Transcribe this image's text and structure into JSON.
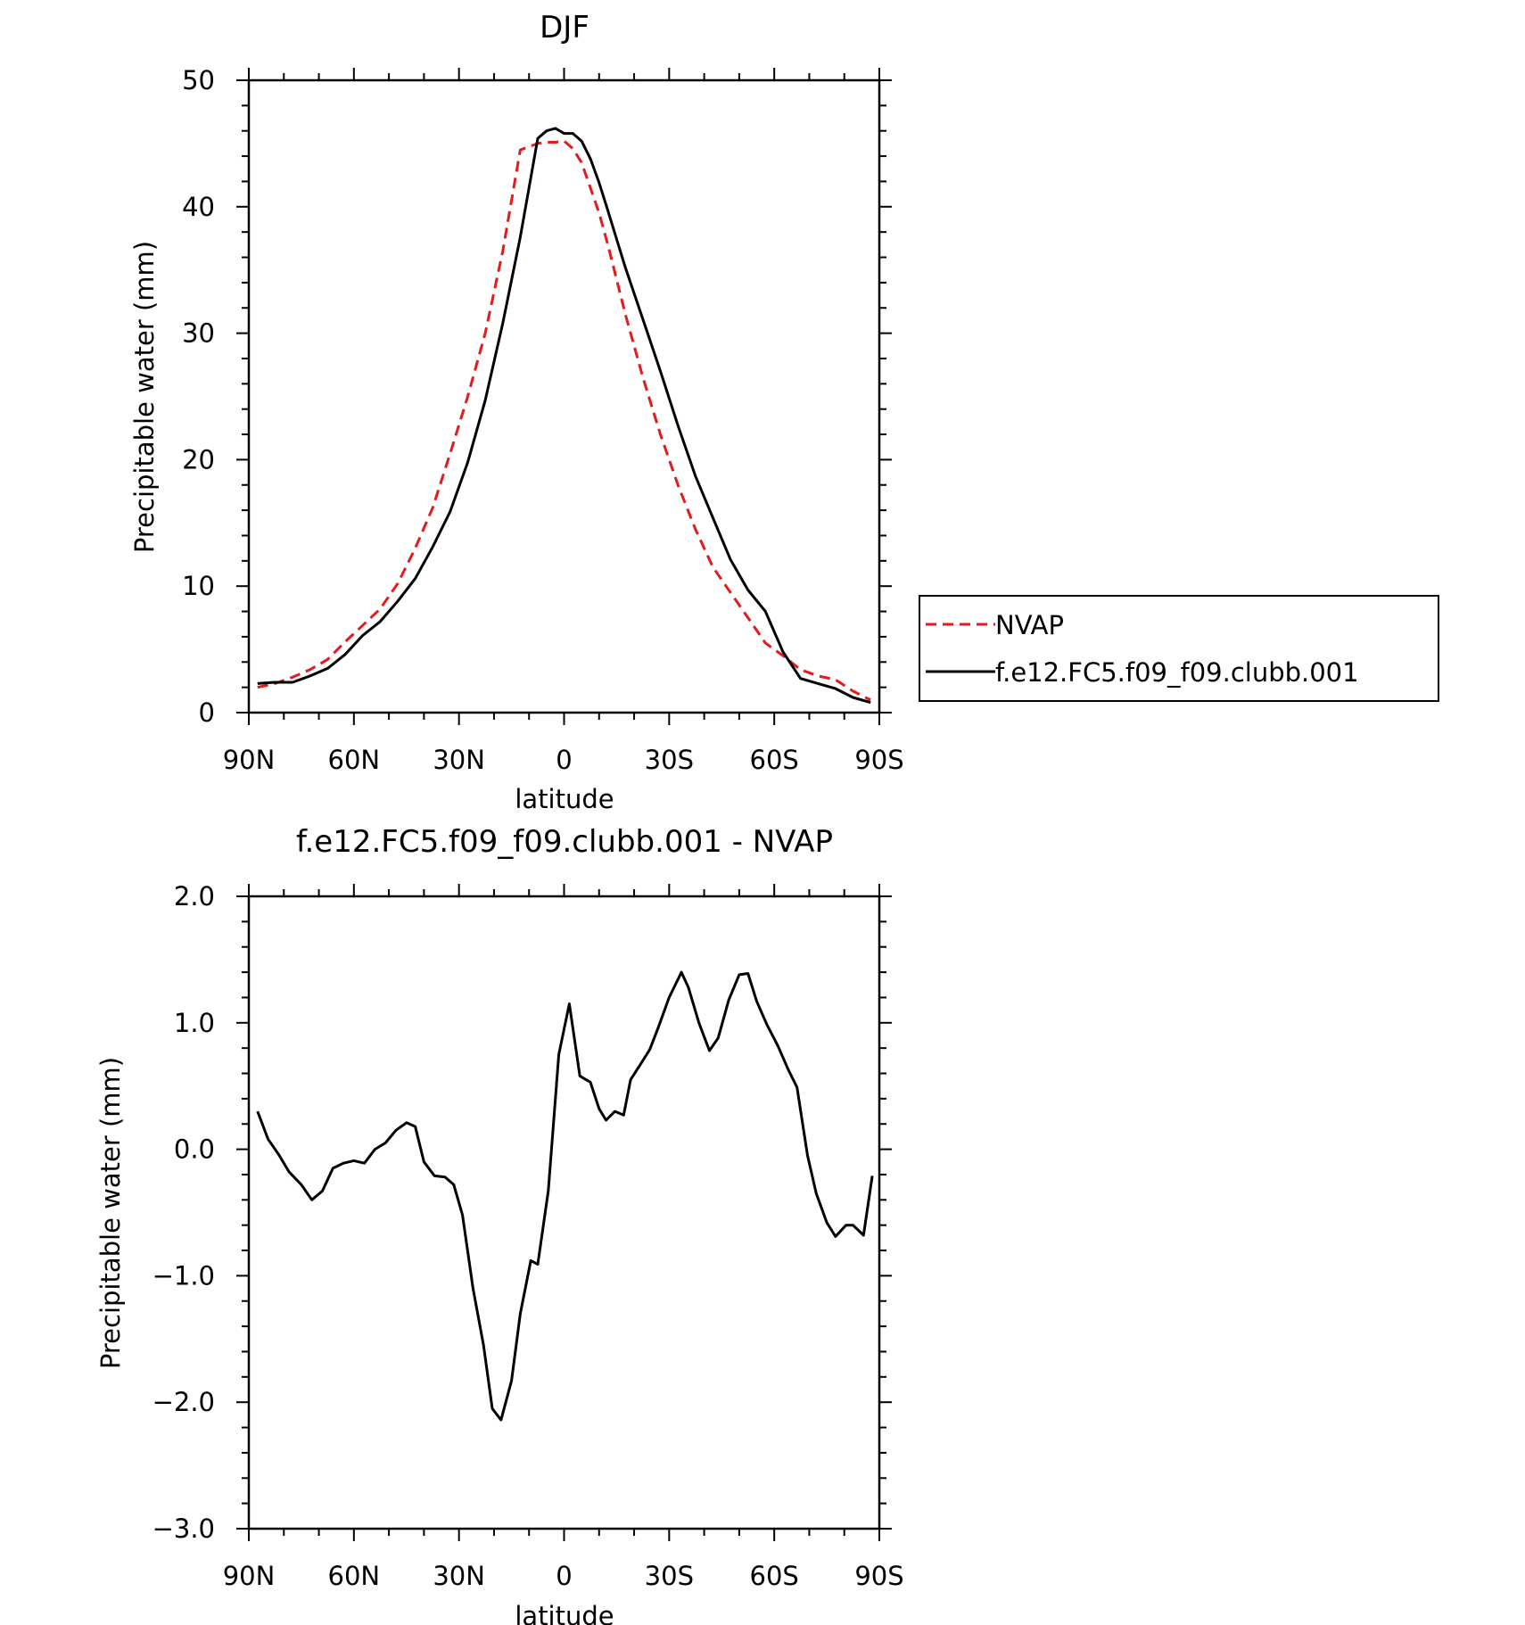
{
  "colors": {
    "ink": "#000000",
    "nvap": "#e41a1c",
    "background": "#ffffff"
  },
  "chart_data": [
    {
      "type": "line",
      "title": "DJF",
      "xlabel": "latitude",
      "ylabel": "Precipitable water (mm)",
      "xlim": [
        90,
        -90
      ],
      "ylim": [
        0,
        50
      ],
      "xticks": [
        90,
        60,
        30,
        0,
        -30,
        -60,
        -90
      ],
      "xtick_labels": [
        "90N",
        "60N",
        "30N",
        "0",
        "30S",
        "60S",
        "90S"
      ],
      "yticks": [
        0,
        10,
        20,
        30,
        40,
        50
      ],
      "ytick_labels": [
        "0",
        "10",
        "20",
        "30",
        "40",
        "50"
      ],
      "legend": {
        "placement": "right",
        "entries": [
          "NVAP",
          "f.e12.FC5.f09_f09.clubb.001"
        ]
      },
      "series": [
        {
          "name": "NVAP",
          "style": "dashed",
          "color": "#e41a1c",
          "x": [
            87.5,
            82.5,
            77.5,
            72.5,
            67.5,
            62.5,
            57.5,
            52.5,
            47.5,
            42.5,
            37.5,
            32.5,
            27.5,
            22.5,
            17.5,
            12.5,
            7.5,
            5.0,
            2.5,
            0.0,
            -2.5,
            -5.0,
            -7.5,
            -10.0,
            -12.5,
            -17.5,
            -22.5,
            -27.5,
            -32.5,
            -37.5,
            -42.5,
            -47.5,
            -52.5,
            -57.5,
            -62.5,
            -67.5,
            -72.5,
            -77.5,
            -82.5,
            -87.5
          ],
          "y": [
            2.0,
            2.3,
            2.8,
            3.4,
            4.2,
            5.6,
            6.9,
            8.2,
            10.2,
            13.0,
            16.2,
            20.5,
            25.0,
            30.0,
            36.5,
            44.5,
            45.0,
            45.1,
            45.1,
            45.2,
            44.6,
            43.5,
            41.5,
            39.5,
            37.0,
            31.5,
            26.5,
            22.0,
            18.0,
            14.5,
            11.5,
            9.5,
            7.5,
            5.5,
            4.5,
            3.4,
            2.9,
            2.6,
            1.7,
            1.0
          ]
        },
        {
          "name": "f.e12.FC5.f09_f09.clubb.001",
          "style": "solid",
          "color": "#000000",
          "x": [
            87.5,
            82.5,
            77.5,
            72.5,
            67.5,
            62.5,
            57.5,
            52.5,
            47.5,
            42.5,
            37.5,
            32.5,
            27.5,
            22.5,
            17.5,
            12.5,
            7.5,
            5.0,
            2.5,
            0.0,
            -2.5,
            -5.0,
            -7.5,
            -10.0,
            -12.5,
            -17.5,
            -22.5,
            -27.5,
            -32.5,
            -37.5,
            -42.5,
            -47.5,
            -52.5,
            -57.5,
            -62.5,
            -67.5,
            -72.5,
            -77.5,
            -82.5,
            -87.5
          ],
          "y": [
            2.3,
            2.4,
            2.4,
            2.9,
            3.5,
            4.6,
            6.1,
            7.2,
            8.8,
            10.6,
            13.1,
            15.9,
            19.8,
            24.7,
            30.8,
            37.6,
            45.4,
            46.0,
            46.2,
            45.8,
            45.8,
            45.2,
            43.8,
            41.9,
            39.7,
            35.2,
            31.1,
            27.0,
            22.7,
            18.7,
            15.4,
            12.1,
            9.7,
            8.0,
            4.8,
            2.7,
            2.3,
            1.9,
            1.2,
            0.8
          ]
        }
      ]
    },
    {
      "type": "line",
      "title": "f.e12.FC5.f09_f09.clubb.001 - NVAP",
      "xlabel": "latitude",
      "ylabel": "Precipitable water (mm)",
      "xlim": [
        90,
        -90
      ],
      "ylim": [
        -3.0,
        2.0
      ],
      "xticks": [
        90,
        60,
        30,
        0,
        -30,
        -60,
        -90
      ],
      "xtick_labels": [
        "90N",
        "60N",
        "30N",
        "0",
        "30S",
        "60S",
        "90S"
      ],
      "yticks": [
        -3.0,
        -2.0,
        -1.0,
        0.0,
        1.0,
        2.0
      ],
      "ytick_labels": [
        "−3.0",
        "−2.0",
        "−1.0",
        "0.0",
        "1.0",
        "2.0"
      ],
      "series": [
        {
          "style": "solid",
          "color": "#000000",
          "x": [
            87.5,
            84.5,
            81.5,
            78.5,
            75.0,
            72.0,
            69.0,
            66.0,
            63.0,
            60.0,
            57.0,
            54.0,
            51.0,
            48.0,
            45.0,
            42.5,
            40.0,
            37.0,
            34.0,
            31.5,
            29.0,
            26.0,
            23.0,
            20.5,
            18.0,
            15.0,
            12.5,
            9.5,
            7.5,
            4.5,
            1.5,
            -1.5,
            -4.5,
            -7.5,
            -10.0,
            -12.0,
            -14.5,
            -17.0,
            -19.0,
            -22.0,
            -24.5,
            -27.0,
            -30.0,
            -33.5,
            -35.5,
            -38.5,
            -41.5,
            -44.0,
            -47.0,
            -50.0,
            -52.5,
            -55.0,
            -58.0,
            -61.0,
            -64.0,
            -66.5,
            -69.5,
            -72.0,
            -75.0,
            -77.5,
            -80.5,
            -82.5,
            -85.5,
            -88.0
          ],
          "y": [
            0.3,
            0.08,
            -0.04,
            -0.18,
            -0.28,
            -0.4,
            -0.33,
            -0.15,
            -0.11,
            -0.09,
            -0.11,
            0.0,
            0.05,
            0.15,
            0.21,
            0.18,
            -0.1,
            -0.21,
            -0.22,
            -0.28,
            -0.52,
            -1.1,
            -1.55,
            -2.05,
            -2.14,
            -1.83,
            -1.3,
            -0.88,
            -0.91,
            -0.33,
            0.75,
            1.15,
            0.58,
            0.53,
            0.32,
            0.23,
            0.3,
            0.27,
            0.55,
            0.68,
            0.79,
            0.97,
            1.2,
            1.4,
            1.28,
            1.0,
            0.78,
            0.88,
            1.18,
            1.38,
            1.39,
            1.17,
            0.98,
            0.82,
            0.63,
            0.49,
            -0.05,
            -0.35,
            -0.58,
            -0.69,
            -0.6,
            -0.6,
            -0.68,
            -0.21
          ]
        }
      ]
    }
  ]
}
